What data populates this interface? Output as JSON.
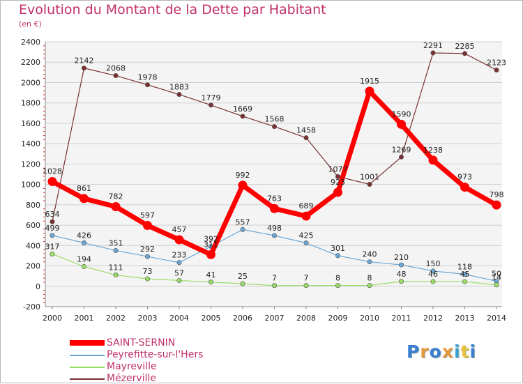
{
  "title": "Evolution du Montant de la Dette par Habitant",
  "unit": "(en €)",
  "logo": {
    "text": "Proxiti",
    "colors": [
      "#3a7ed0",
      "#e8963a",
      "#3a7ed0",
      "#e8963a",
      "#3aa3d0",
      "#e8c23a",
      "#3a7ed0"
    ]
  },
  "chart_data": {
    "type": "line",
    "title": "Evolution du Montant de la Dette par Habitant",
    "subtitle": "(en €)",
    "xlabel": "",
    "ylabel": "",
    "x": [
      "2000",
      "2001",
      "2002",
      "2003",
      "2004",
      "2005",
      "2006",
      "2007",
      "2008",
      "2009",
      "2010",
      "2011",
      "2012",
      "2013",
      "2014"
    ],
    "ylim": [
      -200,
      2400
    ],
    "yticks": [
      "-200",
      "0",
      "200",
      "400",
      "600",
      "800",
      "1000",
      "1200",
      "1400",
      "1600",
      "1800",
      "2000",
      "2200",
      "2400"
    ],
    "grid": "horizontal",
    "legend_position": "bottom-left",
    "series": [
      {
        "name": "SAINT-SERNIN",
        "color": "#ff0000",
        "width": 7,
        "values": [
          1028,
          861,
          782,
          597,
          457,
          311,
          992,
          763,
          689,
          923,
          1915,
          1590,
          1238,
          973,
          798
        ],
        "labels": [
          "1028",
          "861",
          "782",
          "597",
          "457",
          "311",
          "992",
          "763",
          "689",
          "923",
          "1915",
          "1590",
          "1238",
          "973",
          "798"
        ]
      },
      {
        "name": "Peyrefitte-sur-l'Hers",
        "color": "#6aa6d6",
        "width": 1.2,
        "values": [
          499,
          426,
          351,
          292,
          233,
          392,
          557,
          498,
          425,
          301,
          240,
          210,
          150,
          118,
          50
        ],
        "labels": [
          "499",
          "426",
          "351",
          "292",
          "233",
          "392",
          "557",
          "498",
          "425",
          "301",
          "240",
          "210",
          "150",
          "118",
          "50"
        ]
      },
      {
        "name": "Mayreville",
        "color": "#99dd66",
        "width": 1.2,
        "values": [
          317,
          194,
          111,
          73,
          57,
          41,
          25,
          7,
          7,
          8,
          8,
          48,
          46,
          45,
          14
        ],
        "labels": [
          "317",
          "194",
          "111",
          "73",
          "57",
          "41",
          "25",
          "7",
          "7",
          "8",
          "8",
          "48",
          "46",
          "45",
          "14"
        ]
      },
      {
        "name": "Mézerville",
        "color": "#7a3030",
        "width": 1.2,
        "values": [
          634,
          2142,
          2068,
          1978,
          1883,
          1779,
          1669,
          1568,
          1458,
          1077,
          1001,
          1269,
          2291,
          2285,
          2123
        ],
        "labels": [
          "634",
          "2142",
          "2068",
          "1978",
          "1883",
          "1779",
          "1669",
          "1568",
          "1458",
          "1077",
          "1001",
          "1269",
          "2291",
          "2285",
          "2123"
        ]
      }
    ]
  }
}
